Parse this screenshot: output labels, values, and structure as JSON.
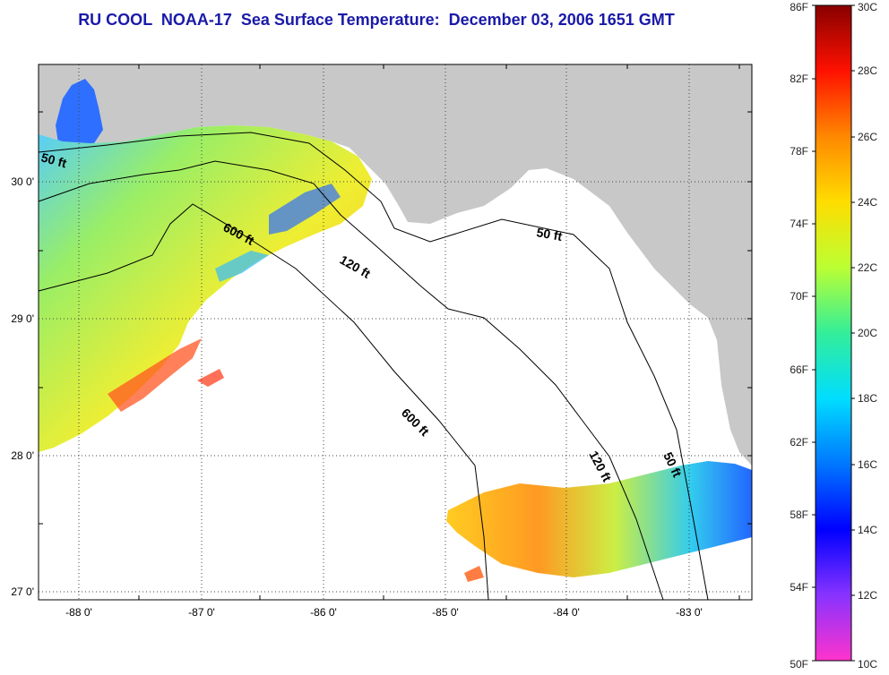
{
  "title": "RU COOL  NOAA-17  Sea Surface Temperature:  December 03, 2006 1651 GMT",
  "map": {
    "lat_labels": [
      "30 0'",
      "29 0'",
      "28 0'",
      "27 0'"
    ],
    "lon_labels": [
      "-88 0'",
      "-87 0'",
      "-86 0'",
      "-85 0'",
      "-84 0'",
      "-83 0'"
    ],
    "lat_range": [
      26.95,
      30.85
    ],
    "lon_range": [
      -88.35,
      -82.55
    ],
    "contour_labels": [
      "50 ft",
      "600 ft",
      "120 ft",
      "50 ft",
      "600 ft",
      "120 ft",
      "50 ft"
    ],
    "colors": {
      "land": "#c8c8c8",
      "nodata": "#ffffff",
      "frame": "#000000"
    }
  },
  "colorbar": {
    "fahrenheit_labels": [
      "86F",
      "82F",
      "78F",
      "74F",
      "70F",
      "66F",
      "62F",
      "58F",
      "54F",
      "50F"
    ],
    "celsius_labels": [
      "30C",
      "28C",
      "26C",
      "24C",
      "22C",
      "20C",
      "18C",
      "16C",
      "14C",
      "12C",
      "10C"
    ],
    "range_c": [
      10,
      30
    ],
    "gradient": [
      "#ff33cc",
      "#8833ff",
      "#0000ff",
      "#0077ff",
      "#00ddff",
      "#33ee99",
      "#bbff33",
      "#ffdd00",
      "#ff8800",
      "#ff1100",
      "#880000"
    ]
  }
}
